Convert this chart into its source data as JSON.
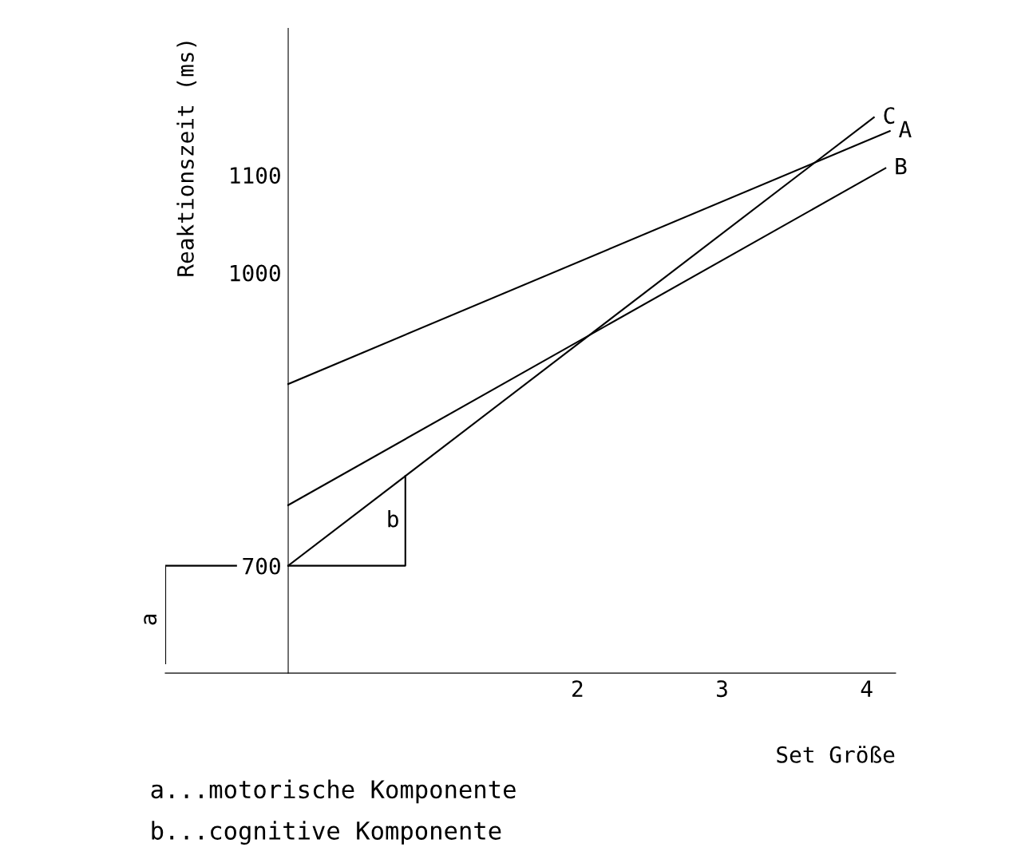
{
  "chart_data": {
    "type": "line",
    "xlabel": "Set Größe",
    "ylabel": "Reaktionszeit (ms)",
    "xlim": [
      -0.85,
      4.2
    ],
    "ylim": [
      590,
      1250
    ],
    "xticks": [
      2,
      3,
      4
    ],
    "yticks": [
      700,
      1000,
      1100
    ],
    "series": [
      {
        "name": "C",
        "color": "#000000",
        "x": [
          0,
          4.05
        ],
        "values": [
          700,
          1159
        ]
      },
      {
        "name": "A",
        "color": "#000000",
        "x": [
          0,
          4.16
        ],
        "values": [
          886,
          1145
        ]
      },
      {
        "name": "B",
        "color": "#000000",
        "x": [
          0,
          4.13
        ],
        "values": [
          762,
          1107
        ]
      }
    ],
    "annotations": [
      "a",
      "b",
      "a...motorische Komponente",
      "b...cognitive Komponente"
    ],
    "grid": false,
    "legend": false,
    "marker": "none",
    "line_style": "solid"
  }
}
